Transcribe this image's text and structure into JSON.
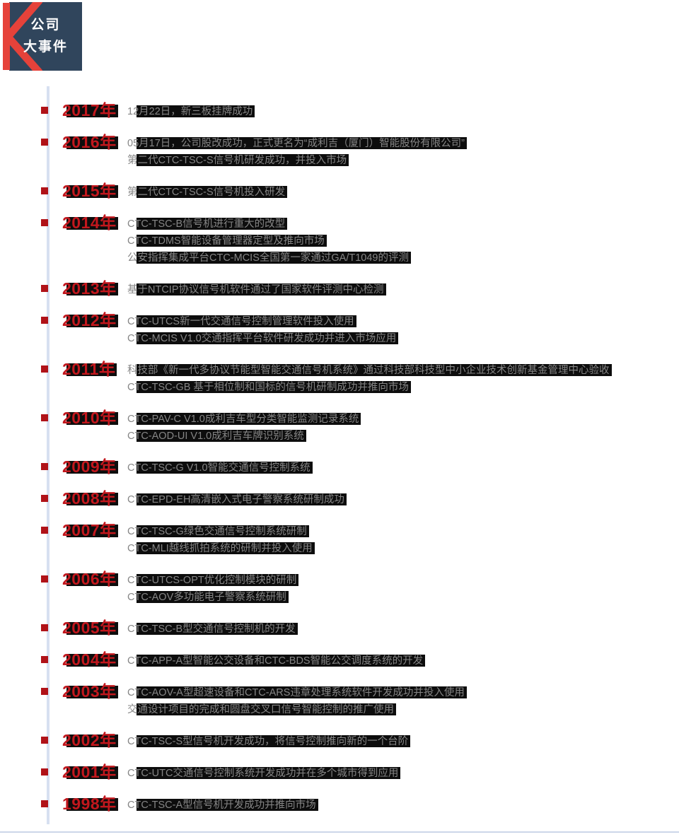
{
  "header": {
    "badge_line1": "公司",
    "badge_line2": "大事件"
  },
  "colors": {
    "badge_navy": "#30455c",
    "brand_red": "#e6423a",
    "year_red": "#c2171d",
    "bullet_red": "#b01218",
    "highlight_black": "#0d0d0d",
    "axis_blue": "#d7e0f1",
    "text_gray": "#858585"
  },
  "timeline": {
    "entries": [
      {
        "year": "2017年",
        "lines": [
          "12月22日，新三板挂牌成功"
        ]
      },
      {
        "year": "2016年",
        "lines": [
          "05月17日，公司股改成功，正式更名为“成利吉（厦门）智能股份有限公司”",
          "第二代CTC-TSC-S信号机研发成功，并投入市场"
        ]
      },
      {
        "year": "2015年",
        "lines": [
          "第二代CTC-TSC-S信号机投入研发"
        ]
      },
      {
        "year": "2014年",
        "lines": [
          "CTC-TSC-B信号机进行重大的改型",
          "CTC-TDMS智能设备管理器定型及推向市场",
          "公安指挥集成平台CTC-MCIS全国第一家通过GA/T1049的评测"
        ]
      },
      {
        "year": "2013年",
        "lines": [
          "基于NTCIP协议信号机软件通过了国家软件评测中心检测"
        ]
      },
      {
        "year": "2012年",
        "lines": [
          "CTC-UTCS新一代交通信号控制管理软件投入使用",
          "CTC-MCIS V1.0交通指挥平台软件研发成功并进入市场应用"
        ]
      },
      {
        "year": "2011年",
        "lines": [
          "科技部《新一代多协议节能型智能交通信号机系统》通过科技部科技型中小企业技术创新基金管理中心验收",
          "CTC-TSC-GB 基于相位制和国标的信号机研制成功并推向市场"
        ]
      },
      {
        "year": "2010年",
        "lines": [
          "CTC-PAV-C V1.0成利吉车型分类智能监测记录系统",
          "CTC-AOD-UI V1.0成利吉车牌识别系统"
        ]
      },
      {
        "year": "2009年",
        "lines": [
          "CTC-TSC-G V1.0智能交通信号控制系统"
        ]
      },
      {
        "year": "2008年",
        "lines": [
          "CTC-EPD-EH高清嵌入式电子警察系统研制成功"
        ]
      },
      {
        "year": "2007年",
        "lines": [
          "CTC-TSC-G绿色交通信号控制系统研制",
          "CTC-MLI越线抓拍系统的研制并投入使用"
        ]
      },
      {
        "year": "2006年",
        "lines": [
          "CTC-UTCS-OPT优化控制模块的研制",
          "CTC-AOV多功能电子警察系统研制"
        ]
      },
      {
        "year": "2005年",
        "lines": [
          "CTC-TSC-B型交通信号控制机的开发"
        ]
      },
      {
        "year": "2004年",
        "lines": [
          "CTC-APP-A型智能公交设备和CTC-BDS智能公交调度系统的开发"
        ]
      },
      {
        "year": "2003年",
        "lines": [
          "CTC-AOV-A型超速设备和CTC-ARS违章处理系统软件开发成功并投入使用",
          "交通设计项目的完成和圆盘交叉口信号智能控制的推广使用"
        ]
      },
      {
        "year": "2002年",
        "lines": [
          "CTC-TSC-S型信号机开发成功，将信号控制推向新的一个台阶"
        ]
      },
      {
        "year": "2001年",
        "lines": [
          "CTC-UTC交通信号控制系统开发成功并在多个城市得到应用"
        ]
      },
      {
        "year": "1998年",
        "lines": [
          "CTC-TSC-A型信号机开发成功并推向市场"
        ]
      }
    ]
  }
}
